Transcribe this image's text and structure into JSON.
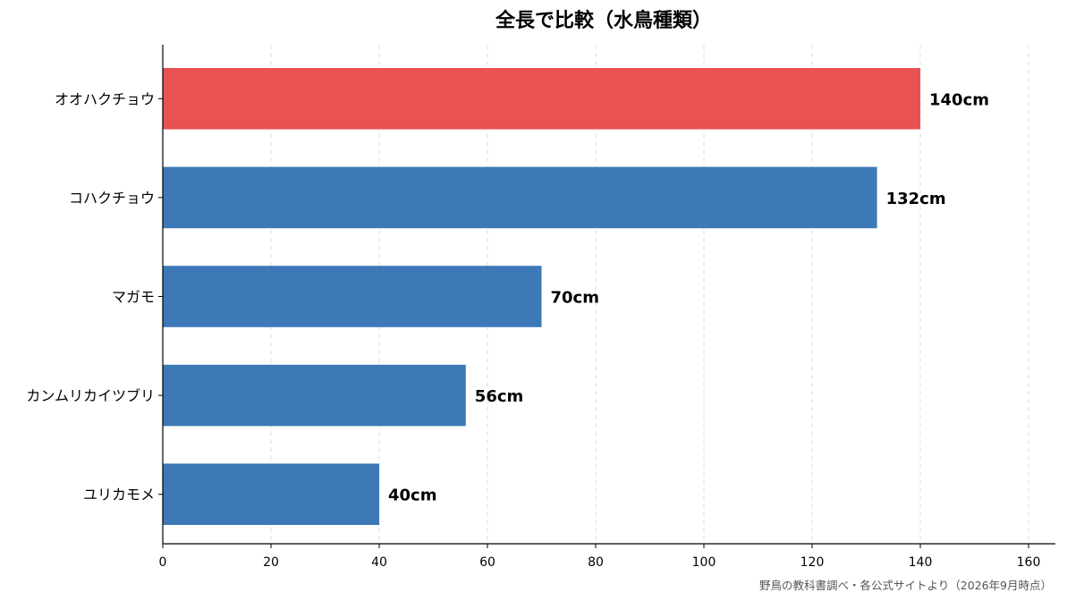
{
  "chart_data": {
    "type": "bar",
    "orientation": "horizontal",
    "title": "全長で比較（水鳥種類）",
    "categories": [
      "オオハクチョウ",
      "コハクチョウ",
      "マガモ",
      "カンムリカイツブリ",
      "ユリカモメ"
    ],
    "values": [
      140,
      132,
      70,
      56,
      40
    ],
    "value_labels": [
      "140cm",
      "132cm",
      "70cm",
      "56cm",
      "40cm"
    ],
    "unit": "cm",
    "xlim": [
      0,
      165
    ],
    "x_ticks": [
      0,
      20,
      40,
      60,
      80,
      100,
      120,
      140,
      160
    ],
    "x_tick_labels": [
      "0",
      "20",
      "40",
      "60",
      "80",
      "100",
      "120",
      "140",
      "160"
    ],
    "xlabel": "",
    "ylabel": "",
    "grid": "vertical dashed",
    "legend": "none",
    "bar_colors": [
      "#e85252",
      "#3d79b7",
      "#3d79b7",
      "#3d79b7",
      "#3d79b7"
    ],
    "highlight_color": "#e85252",
    "base_color": "#3d79b7",
    "source": "野鳥の教科書調べ・各公式サイトより（2026年9月時点）"
  }
}
